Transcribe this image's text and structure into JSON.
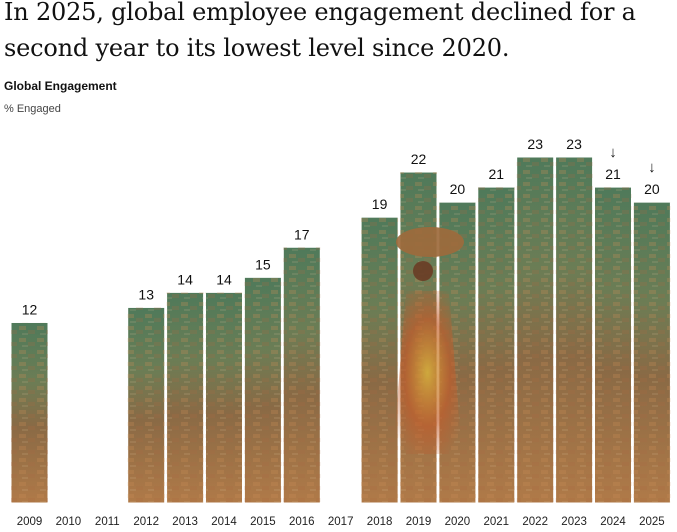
{
  "headline": "In 2025, global employee engagement declined for a second year to its lowest level since 2020.",
  "chart_data": {
    "type": "bar",
    "title": "Global Engagement",
    "ylabel": "% Engaged",
    "xlabel": "",
    "ylim": [
      0,
      23
    ],
    "categories": [
      "2009",
      "2010",
      "2011",
      "2012",
      "2013",
      "2014",
      "2015",
      "2016",
      "2017",
      "2018",
      "2019",
      "2020",
      "2021",
      "2022",
      "2023",
      "2024",
      "2025"
    ],
    "values": [
      12,
      null,
      null,
      13,
      14,
      14,
      15,
      17,
      null,
      19,
      22,
      20,
      21,
      23,
      23,
      21,
      20
    ],
    "value_labels": [
      "12",
      "",
      "",
      "13",
      "14",
      "14",
      "15",
      "17",
      "",
      "19",
      "22",
      "20",
      "21",
      "23",
      "23",
      "21",
      "20"
    ],
    "annotations": [
      {
        "category": "2024",
        "marker": "down-arrow-icon",
        "text": "↓"
      },
      {
        "category": "2025",
        "marker": "down-arrow-icon",
        "text": "↓"
      }
    ],
    "grid": false,
    "legend": "none",
    "colors": {
      "label": "#111111",
      "axis_label": "#222222",
      "bar_top": "#4f7a5a",
      "bar_mid": "#8a6a45",
      "bar_bottom": "#b07a48"
    }
  }
}
